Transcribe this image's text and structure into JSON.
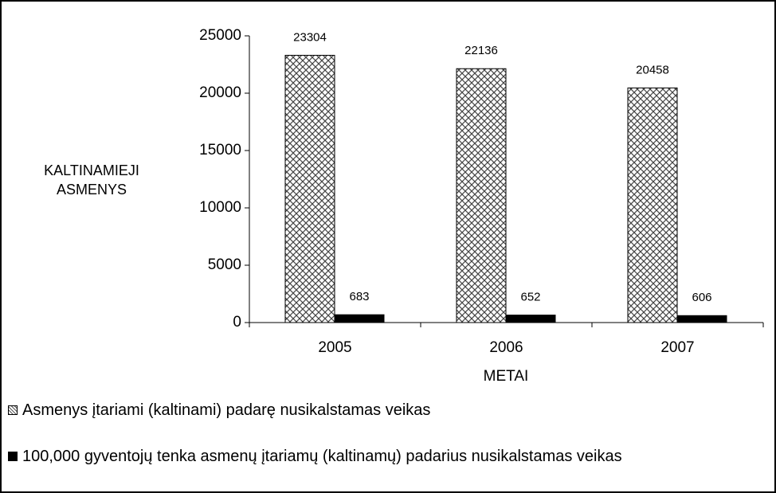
{
  "chart_data": {
    "type": "bar",
    "x_label": "METAI",
    "y_label": "KALTINAMIEJI ASMENYS",
    "categories": [
      "2005",
      "2006",
      "2007"
    ],
    "series": [
      {
        "name": "Asmenys įtariami (kaltinami) padarę nusikalstamas veikas",
        "color": "#000000",
        "pattern": "crosshatch",
        "values": [
          23304,
          22136,
          20458
        ]
      },
      {
        "name": "100,000 gyventojų tenka asmenų įtariamų (kaltinamų) padarius nusikalstamas veikas",
        "color": "#000000",
        "values": [
          683,
          652,
          606
        ]
      }
    ],
    "ylim": [
      0,
      25000
    ],
    "yticks": [
      0,
      5000,
      10000,
      15000,
      20000,
      25000
    ],
    "legend": "bottom"
  }
}
